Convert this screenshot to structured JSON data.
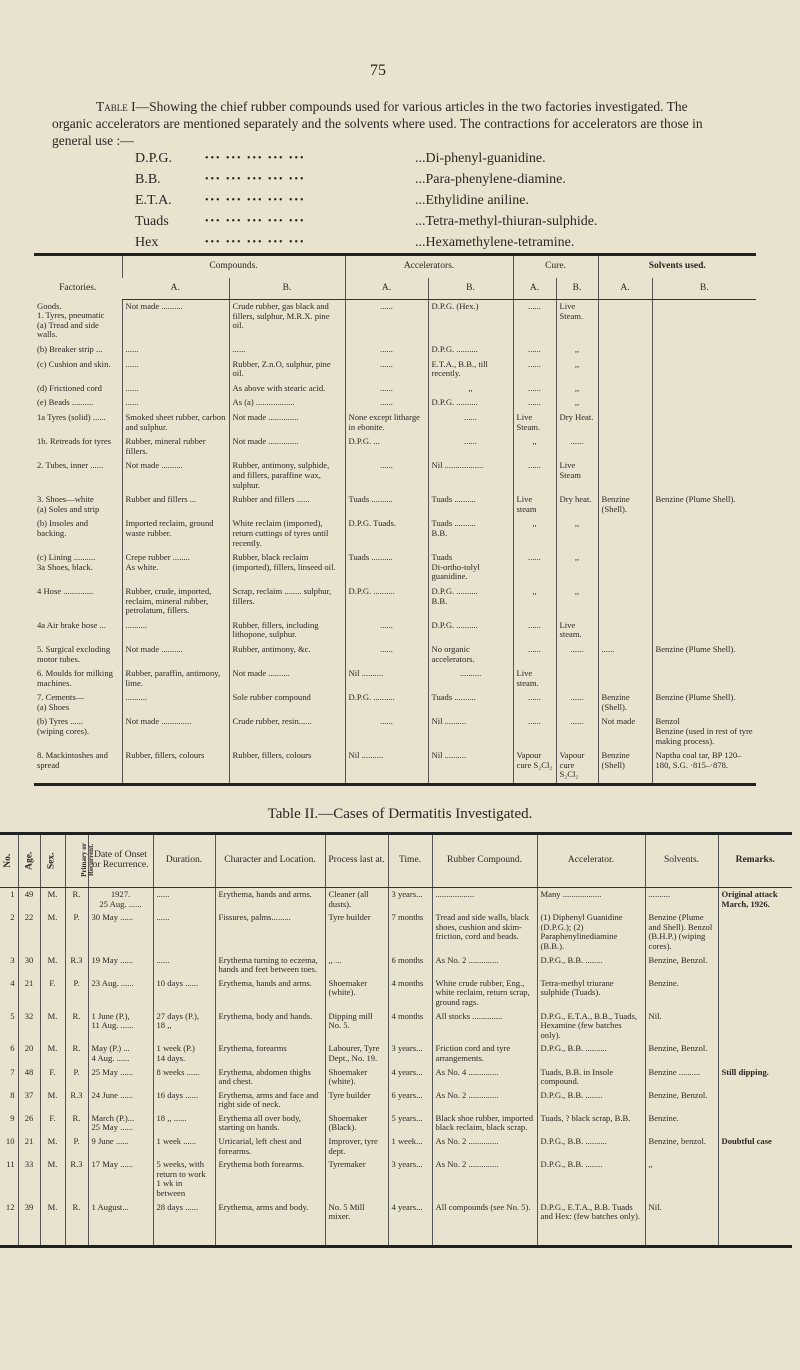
{
  "page_number": "75",
  "intro": {
    "label": "Table I",
    "text": "—Showing the chief rubber compounds used for various articles in the two factories investigated. The organic accelerators are mentioned separately and the solvents where used. The contractions for accelerators are those in general use :—"
  },
  "abbreviations": [
    {
      "abbr": "D.P.G.",
      "meaning": "...Di-phenyl-guanidine."
    },
    {
      "abbr": "B.B.",
      "meaning": "...Para-phenylene-diamine."
    },
    {
      "abbr": "E.T.A.",
      "meaning": "...Ethylidine aniline."
    },
    {
      "abbr": "Tuads",
      "meaning": "...Tetra-methyl-thiuran-sulphide."
    },
    {
      "abbr": "Hex",
      "meaning": "...Hexamethylene-tetramine."
    }
  ],
  "table1": {
    "group_headers": {
      "factories": "Factories.",
      "compounds": "Compounds.",
      "accelerators": "Accelerators.",
      "cure": "Cure.",
      "solvents": "Solvents used."
    },
    "sub_a": "A.",
    "sub_b": "B.",
    "rows": [
      [
        "Goods.\n1. Tyres, pneumatic\n(a) Tread and side walls.",
        "Not made ..........",
        "Crude rubber, gas black and fillers, sulphur, M.R.X. pine oil.",
        "......",
        "D.P.G. (Hex.)",
        "......",
        "Live Steam.",
        "",
        ""
      ],
      [
        "(b) Breaker strip ...",
        "......",
        "......",
        "......",
        "D.P.G. ..........",
        "......",
        ",,",
        "",
        ""
      ],
      [
        "(c) Cushion and skin.",
        "......",
        "Rubber, Z.n.O, sulphur, pine oil.",
        "......",
        "E.T.A., B.B., till recently.",
        "......",
        ",,",
        "",
        ""
      ],
      [
        "(d) Frictioned cord",
        "......",
        "As above with stearic acid.",
        "......",
        ",,",
        "......",
        ",,",
        "",
        ""
      ],
      [
        "(e) Beads ..........",
        "......",
        "As (a) ..................",
        "......",
        "D.P.G. ..........",
        "......",
        ",,",
        "",
        ""
      ],
      [
        "1a Tyres (solid) ......",
        "Smoked sheet rubber, carbon and sulphur.",
        "Not made ..............",
        "None except litharge in ebonite.",
        "......",
        "Live Steam.",
        "Dry Heat.",
        "",
        ""
      ],
      [
        "1b. Retreads for tyres",
        "Rubber, mineral rubber fillers.",
        "Not made ..............",
        "D.P.G. ...",
        "......",
        ",,",
        "......",
        "",
        ""
      ],
      [
        "2. Tubes, inner ......",
        "Not made ..........",
        "Rubber, antimony, sulphide, and fillers, paraffine wax, sulphur.",
        "......",
        "Nil ..................",
        "......",
        "Live Steam",
        "",
        ""
      ],
      [
        "3. Shoes—white\n(a) Soles and strip",
        "Rubber and fillers ...",
        "Rubber and fillers ......",
        "Tuads ..........",
        "Tuads ..........",
        "Live steam",
        "Dry heat.",
        "Benzine (Shell).",
        "Benzine (Plume Shell)."
      ],
      [
        "(b) Insoles and backing.",
        "Imported reclaim, ground waste rubber.",
        "White reclaim (imported), return cuttings of tyres until recently.",
        "D.P.G. Tuads.",
        "Tuads ..........\nB.B.",
        ",,",
        ",,",
        "",
        ""
      ],
      [
        "(c) Lining ..........\n3a Shoes, black.",
        "Crepe rubber ........\nAs white.",
        "Rubber, black reclaim (imported), fillers, linseed oil.",
        "Tuads ..........",
        "Tuads\nDi-ortho-tolyl guanidine.",
        "......",
        ",,",
        "",
        ""
      ],
      [
        "4 Hose ..............",
        "Rubber, crude, imported, reclaim, mineral rubber, petrolatum, fillers.",
        "Scrap, reclaim ........ sulphur, fillers.",
        "D.P.G. ..........",
        "D.P.G. ..........\nB.B.",
        ",,",
        ",,",
        "",
        ""
      ],
      [
        "4a Air brake hose ...",
        "..........",
        "Rubber, fillers, including lithopone, sulphur.",
        "......",
        "D.P.G. ..........",
        "......",
        "Live steam.",
        "",
        ""
      ],
      [
        "5. Surgical excluding motor tubes.",
        "Not made ..........",
        "Rubber, antimony, &c.",
        "......",
        "No organic accelerators.",
        "......",
        "......",
        "......",
        "Benzine (Plume Shell)."
      ],
      [
        "6. Moulds for milking machines.",
        "Rubber, paraffin, antimony, lime.",
        "Not made ..........",
        "Nil ..........",
        "..........",
        "Live steam.",
        "",
        "",
        ""
      ],
      [
        "7. Cements—\n(a) Shoes",
        "..........",
        "Sole rubber compound",
        "D.P.G. ..........",
        "Tuads ..........",
        "......",
        "......",
        "Benzine (Shell).",
        "Benzine (Plume Shell)."
      ],
      [
        "(b) Tyres ......\n(wiping cores).",
        "Not made ..............",
        "Crude rubber, resin......",
        "......",
        "Nil ..........",
        "......",
        "......",
        "Not made",
        "Benzol\nBenzine (used in rest of tyre making process)."
      ],
      [
        "8. Mackintoshes and spread",
        "Rubber, fillers, colours",
        "Rubber, fillers, colours",
        "Nil ..........",
        "Nil ..........",
        "Vapour cure S₂Cl₂",
        "Vapour cure S₂Cl₂",
        "Benzine (Shell)",
        "Naptha coal tar, BP 120–180, S.G. ·815–·878."
      ]
    ]
  },
  "table2": {
    "title": "Table II.—Cases of Dermatitis Investigated.",
    "headers": [
      "No.",
      "Age.",
      "Sex.",
      "Primary or Recurrent.",
      "Date of Onset or Recurrence.",
      "Duration.",
      "Character and Location.",
      "Process last at.",
      "Time.",
      "Rubber Compound.",
      "Accelerator.",
      "Solvents.",
      "Remarks."
    ],
    "rows": [
      [
        "1",
        "49",
        "M.",
        "R.",
        "1927.\n25 Aug. ......",
        "......",
        "Erythema, hands and arms.",
        "Cleaner (all dusts).",
        "3 years...",
        "..................",
        "Many ..................",
        "..........",
        "Original attack March, 1926."
      ],
      [
        "2",
        "22",
        "M.",
        "P.",
        "30 May ......",
        "......",
        "Fissures, palms.........",
        "Tyre builder",
        "7 months",
        "Tread and side walls, black shoes, cushion and skim-friction, cord and beads.",
        "(1) Diphenyl Guanidine (D.P.G.); (2) Paraphenylinediamine (B.B.).",
        "Benzine (Plume and Shell). Benzol (B.H.P.) (wiping cores).",
        ""
      ],
      [
        "3",
        "30",
        "M.",
        "R.3",
        "19 May ......",
        "......",
        "Erythema turning to eczema, hands and feet between toes.",
        ",, ...",
        "6 months",
        "As No. 2 ..............",
        "D.P.G., B.B. ........",
        "Benzine, Benzol.",
        ""
      ],
      [
        "4",
        "21",
        "F.",
        "P.",
        "23 Aug. ......",
        "10 days ......",
        "Erythema, hands and arms.",
        "Shoemaker (white).",
        "4 months",
        "White crude rubber, Eng., white reclaim, return scrap, ground rags.",
        "Tetra-methyl triurane sulphide (Tuads).",
        "Benzine.",
        ""
      ],
      [
        "5",
        "32",
        "M.",
        "R.",
        "1 June (P.),\n11 Aug. ......",
        "27 days (P.),\n18 ,,",
        "Erythema, body and hands.",
        "Dipping mill No. 5.",
        "4 months",
        "All stocks ..............",
        "D.P.G., E.T.A., B.B., Tuads, Hexamine (few batches only).",
        "Nil.",
        ""
      ],
      [
        "6",
        "20",
        "M.",
        "R.",
        "May (P.) ...\n4 Aug. ......",
        "1 week (P.)\n14 days.",
        "Erythema, forearms",
        "Labourer, Tyre Dept., No. 19.",
        "3 years...",
        "Friction cord and tyre arrangements.",
        "D.P.G., B.B. ..........",
        "Benzine, Benzol.",
        ""
      ],
      [
        "7",
        "48",
        "F.",
        "P.",
        "25 May ......",
        "8 weeks ......",
        "Erythema, abdomen thighs and chest.",
        "Shoemaker (white).",
        "4 years...",
        "As No. 4 ..............",
        "Tuads, B.B. in Insole compound.",
        "Benzine ..........",
        "Still dipping."
      ],
      [
        "8",
        "37",
        "M.",
        "R.3",
        "24 June ......",
        "16 days ......",
        "Erythema, arms and face and right side of neck.",
        "Tyre builder",
        "6 years...",
        "As No. 2 ..............",
        "D.P.G., B.B. ........",
        "Benzine, Benzol.",
        ""
      ],
      [
        "9",
        "26",
        "F.",
        "R.",
        "March (P.)...\n25 May ......",
        "18 ,, ......",
        "Erythema all over body, starting on hands.",
        "Shoemaker (Black).",
        "5 years...",
        "Black shoe rubber, imported black reclaim, black scrap.",
        "Tuads, ? black scrap, B.B.",
        "Benzine.",
        ""
      ],
      [
        "10",
        "21",
        "M.",
        "P.",
        "9 June ......",
        "1 week ......",
        "Urticarial, left chest and forearms.",
        "Improver, tyre dept.",
        "1 week...",
        "As No. 2 ..............",
        "D.P.G., B.B. ..........",
        "Benzine, benzol.",
        "Doubtful case"
      ],
      [
        "11",
        "33",
        "M.",
        "R.3",
        "17 May ......",
        "5 weeks, with return to work 1 wk in between",
        "Erythema both forearms.",
        "Tyremaker",
        "3 years...",
        "As No. 2 ..............",
        "D.P.G., B.B. ........",
        ",,",
        ""
      ],
      [
        "12",
        "39",
        "M.",
        "R.",
        "1 August...",
        "28 days ......",
        "Erythema, arms and body.",
        "No. 5 Mill mixer.",
        "4 years...",
        "All compounds (see No. 5).",
        "D.P.G., E.T.A., B.B. Tuads and Hex: (few batches only).",
        "Nil.",
        ""
      ]
    ]
  }
}
